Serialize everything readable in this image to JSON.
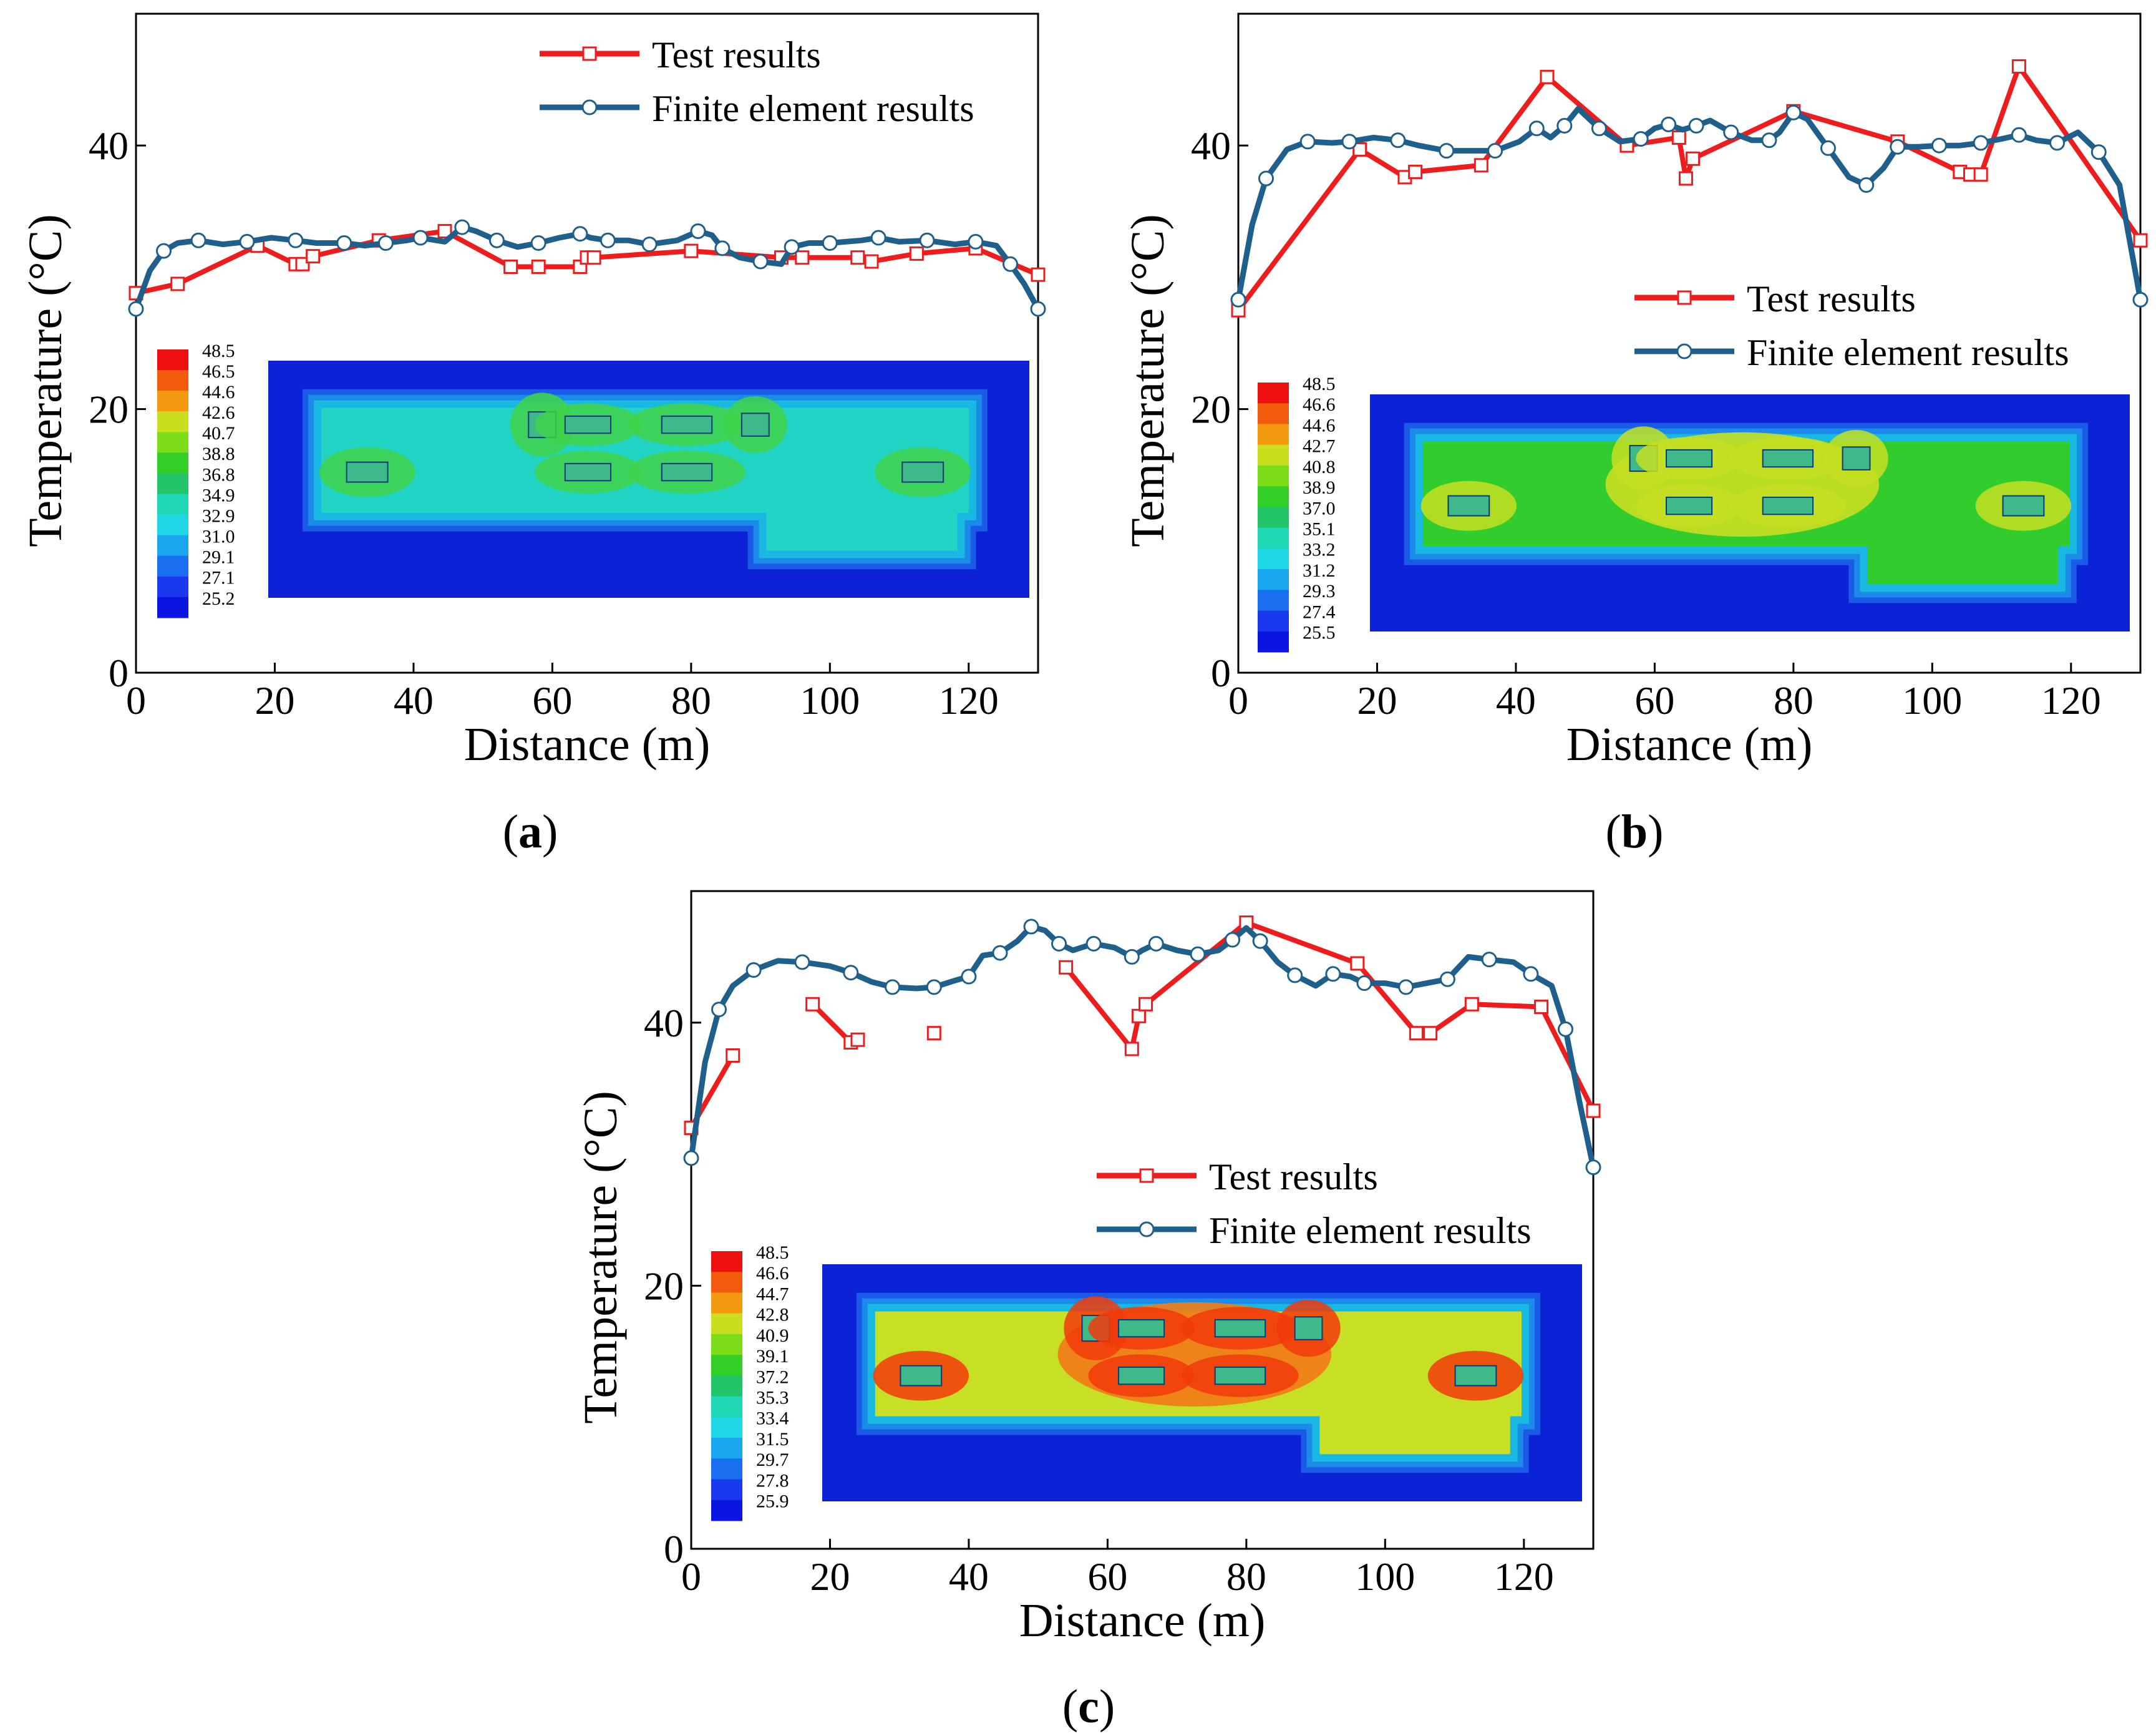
{
  "figure": {
    "panels": [
      "a",
      "b",
      "c"
    ]
  },
  "colors": {
    "test": "#ee1c1c",
    "fe": "#1f5f8b",
    "background": "#ffffff",
    "axis": "#000000",
    "contour_bg": "#0b22d6"
  },
  "chart_data": [
    {
      "id": "a",
      "type": "line",
      "panel_label": "a",
      "xlabel": "Distance (m)",
      "ylabel": "Temperature (°C)",
      "xlim": [
        0,
        130
      ],
      "ylim": [
        0,
        50
      ],
      "xticks": [
        "0",
        "20",
        "40",
        "60",
        "80",
        "100",
        "120"
      ],
      "yticks": [
        "0",
        "20",
        "40"
      ],
      "legend_position": "top-right",
      "series": [
        {
          "name": "Test results",
          "x": [
            0,
            6,
            17.5,
            23,
            24,
            25.5,
            35,
            44.5,
            54,
            58,
            64,
            65,
            66,
            80,
            93,
            96,
            104,
            106,
            112.5,
            121,
            130
          ],
          "y": [
            28.8,
            29.5,
            32.4,
            31.0,
            31.0,
            31.6,
            32.8,
            33.5,
            30.8,
            30.8,
            30.8,
            31.5,
            31.5,
            32.0,
            31.5,
            31.5,
            31.5,
            31.2,
            31.8,
            32.2,
            30.2
          ]
        },
        {
          "name": "Finite element results",
          "x": [
            0,
            2,
            4,
            6,
            9,
            12.5,
            16,
            19.5,
            23,
            26,
            30,
            33,
            36,
            39,
            41,
            44.5,
            47,
            49,
            52,
            55,
            58,
            61,
            64,
            65.5,
            68,
            71,
            74,
            78,
            81,
            83,
            84.5,
            87,
            90,
            93,
            94.5,
            97,
            100,
            104.5,
            107,
            110,
            114,
            118,
            121,
            124,
            126,
            128,
            130
          ],
          "y": [
            27.6,
            30.5,
            32.0,
            32.6,
            32.8,
            32.5,
            32.7,
            33.0,
            32.8,
            32.6,
            32.6,
            32.4,
            32.6,
            32.8,
            33.0,
            32.7,
            33.8,
            33.5,
            32.8,
            32.3,
            32.6,
            33.0,
            33.3,
            33.0,
            32.8,
            32.8,
            32.5,
            32.8,
            33.5,
            33.2,
            32.2,
            31.5,
            31.2,
            31.0,
            32.3,
            32.6,
            32.6,
            32.8,
            33.0,
            32.7,
            32.8,
            32.5,
            32.7,
            32.4,
            31.0,
            29.5,
            27.6
          ]
        }
      ],
      "colorbar": [
        "48.5",
        "46.5",
        "44.6",
        "42.6",
        "40.7",
        "38.8",
        "36.8",
        "34.9",
        "32.9",
        "31.0",
        "29.1",
        "27.1",
        "25.2"
      ],
      "contour_inner": "#22d4c4",
      "contour_hot": "#3fd24a",
      "contour_hot2": "#3fd24a"
    },
    {
      "id": "b",
      "type": "line",
      "panel_label": "b",
      "xlabel": "Distance (m)",
      "ylabel": "Temperature (°C)",
      "xlim": [
        0,
        130
      ],
      "ylim": [
        0,
        50
      ],
      "xticks": [
        "0",
        "20",
        "40",
        "60",
        "80",
        "100",
        "120"
      ],
      "yticks": [
        "0",
        "20",
        "40"
      ],
      "legend_position": "center-right",
      "series": [
        {
          "name": "Test results",
          "x": [
            0,
            17.5,
            24,
            25.5,
            35,
            44.5,
            56,
            63.5,
            64.5,
            65.5,
            80,
            95,
            104,
            105.5,
            107,
            112.5,
            130
          ],
          "y": [
            27.5,
            39.7,
            37.6,
            38.0,
            38.5,
            45.2,
            40.0,
            40.6,
            37.5,
            39.0,
            42.6,
            40.3,
            38.0,
            37.8,
            37.8,
            46.0,
            32.8
          ]
        },
        {
          "name": "Finite element results",
          "x": [
            0,
            2,
            4,
            7,
            10,
            13.5,
            16,
            19.5,
            23,
            26,
            30,
            34,
            37,
            40.5,
            43,
            45,
            47,
            49,
            52,
            55,
            58,
            60,
            62,
            64,
            66,
            68,
            71,
            74,
            76.5,
            78,
            80,
            82,
            85,
            88,
            90.5,
            93,
            95,
            98,
            101,
            104,
            107,
            110,
            112.5,
            115,
            118,
            121,
            124,
            127,
            130
          ],
          "y": [
            28.3,
            34.0,
            37.5,
            39.7,
            40.3,
            40.2,
            40.3,
            40.6,
            40.4,
            40.0,
            39.6,
            39.6,
            39.6,
            40.3,
            41.3,
            40.6,
            41.5,
            42.8,
            41.3,
            40.3,
            40.5,
            41.3,
            41.6,
            41.2,
            41.5,
            41.9,
            41.0,
            40.4,
            40.4,
            41.0,
            42.5,
            42.0,
            39.8,
            37.6,
            37.0,
            38.3,
            39.9,
            39.9,
            40.0,
            40.0,
            40.2,
            40.5,
            40.8,
            40.4,
            40.2,
            41.0,
            39.5,
            37.0,
            28.3
          ]
        }
      ],
      "colorbar": [
        "48.5",
        "46.6",
        "44.6",
        "42.7",
        "40.8",
        "38.9",
        "37.0",
        "35.1",
        "33.2",
        "31.2",
        "29.3",
        "27.4",
        "25.5"
      ],
      "contour_inner": "#33cc2e",
      "contour_hot": "#c6df22",
      "contour_hot2": "#c6df22"
    },
    {
      "id": "c",
      "type": "line",
      "panel_label": "c",
      "xlabel": "Distance (m)",
      "ylabel": "Temperature (°C)",
      "xlim": [
        0,
        130
      ],
      "ylim": [
        0,
        50
      ],
      "xticks": [
        "0",
        "20",
        "40",
        "60",
        "80",
        "100",
        "120"
      ],
      "yticks": [
        "0",
        "20",
        "40"
      ],
      "legend_position": "center-right",
      "series": [
        {
          "name": "Test results",
          "x": [
            0,
            6,
            null,
            17.5,
            23,
            24,
            null,
            35,
            null,
            54,
            63.5,
            64.5,
            65.5,
            80,
            96,
            104.5,
            106.5,
            112.5,
            122.5,
            130
          ],
          "y": [
            32.0,
            37.5,
            null,
            41.4,
            38.5,
            38.7,
            null,
            39.2,
            null,
            44.2,
            38.0,
            40.5,
            41.4,
            47.6,
            44.5,
            39.2,
            39.2,
            41.4,
            41.2,
            33.3
          ]
        },
        {
          "name": "Finite element results",
          "x": [
            0,
            2,
            4,
            6,
            9,
            12.5,
            16,
            20,
            23,
            26,
            29,
            32.5,
            35,
            38,
            40,
            42,
            44.5,
            47,
            49,
            51,
            53,
            55,
            58,
            61,
            63.5,
            65,
            67,
            70,
            73,
            76,
            78,
            80,
            82,
            84.5,
            87,
            90,
            92.5,
            95,
            97,
            100,
            103,
            106,
            109,
            112,
            115,
            118.5,
            121,
            124,
            126,
            128,
            130
          ],
          "y": [
            29.7,
            37.0,
            41.0,
            42.8,
            44.0,
            44.7,
            44.6,
            44.3,
            43.8,
            43.1,
            42.7,
            42.6,
            42.7,
            43.2,
            43.5,
            45.1,
            45.3,
            46.2,
            47.3,
            47.0,
            46.0,
            45.5,
            46.0,
            45.7,
            45.0,
            45.5,
            46.0,
            45.5,
            45.2,
            45.5,
            46.3,
            47.2,
            46.2,
            44.6,
            43.6,
            42.8,
            43.7,
            43.5,
            43.0,
            43.0,
            42.7,
            43.0,
            43.3,
            45.0,
            44.8,
            44.6,
            43.7,
            42.8,
            39.5,
            34.0,
            29.0
          ]
        }
      ],
      "colorbar": [
        "48.5",
        "46.6",
        "44.7",
        "42.8",
        "40.9",
        "39.1",
        "37.2",
        "35.3",
        "33.4",
        "31.5",
        "29.7",
        "27.8",
        "25.9"
      ],
      "contour_inner": "#c7e026",
      "contour_hot": "#f27a16",
      "contour_hot2": "#f23a0c"
    }
  ]
}
